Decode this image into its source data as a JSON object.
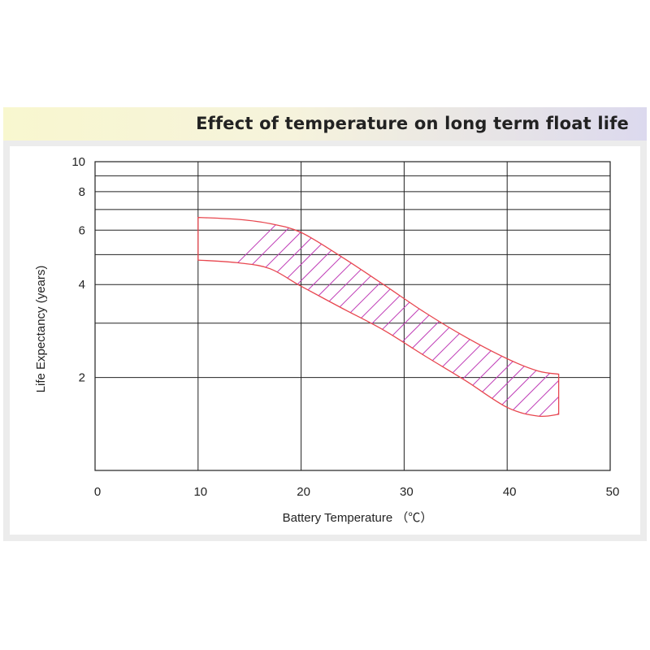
{
  "chart_data": {
    "type": "area",
    "title": "Effect of temperature on long term float life",
    "xlabel": "Battery Temperature （℃）",
    "ylabel": "Life Expectancy (years)",
    "xlim": [
      0,
      50
    ],
    "ylim": [
      1,
      10
    ],
    "yscale": "log",
    "grid": true,
    "x_ticks": [
      "0",
      "10",
      "20",
      "30",
      "40",
      "50"
    ],
    "y_ticks": [
      "2",
      "4",
      "6",
      "8",
      "10"
    ],
    "series": [
      {
        "role": "upper",
        "x": [
          10,
          14,
          17,
          20,
          24,
          28,
          32,
          36,
          40,
          43,
          45
        ],
        "values": [
          6.6,
          6.5,
          6.3,
          5.9,
          4.9,
          4.0,
          3.25,
          2.7,
          2.3,
          2.1,
          2.05
        ]
      },
      {
        "role": "lower",
        "x": [
          10,
          14,
          17,
          20,
          24,
          28,
          32,
          36,
          40,
          43,
          45
        ],
        "values": [
          4.8,
          4.7,
          4.5,
          3.95,
          3.35,
          2.85,
          2.35,
          1.95,
          1.6,
          1.5,
          1.52
        ]
      }
    ],
    "colors": {
      "band_outline": "#e8474f",
      "band_hatch": "#c03fb8",
      "grid": "#222222"
    }
  }
}
